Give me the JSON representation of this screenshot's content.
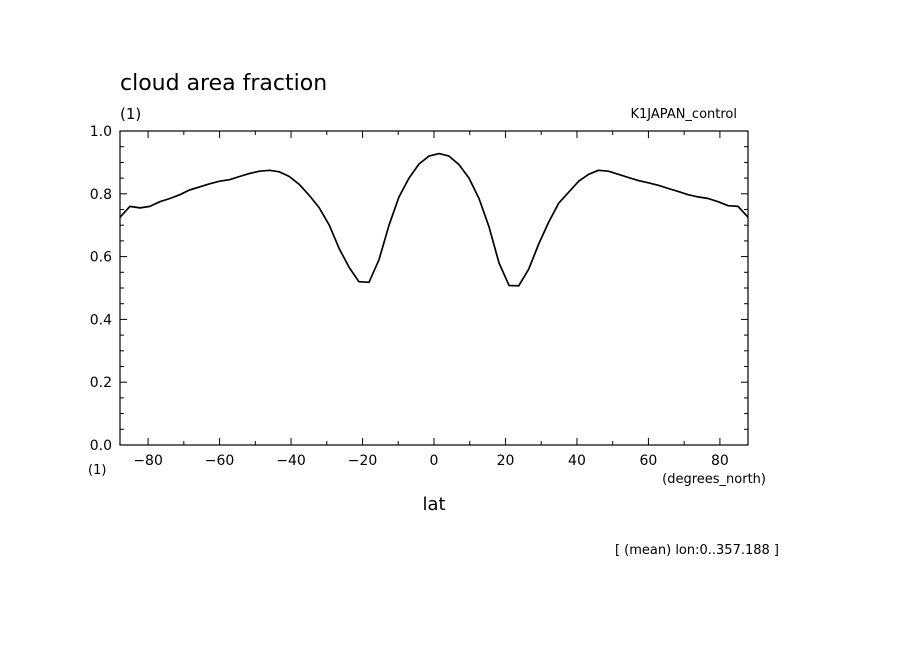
{
  "chart_data": {
    "type": "line",
    "title": "cloud area fraction",
    "y_units": "(1)",
    "x_units_left": "(1)",
    "x_units": "(degrees_north)",
    "xlabel": "lat",
    "dataset_label": "K1JAPAN_control",
    "footnote": "[ (mean) lon:0..357.188 ]",
    "xlim": [
      -87.86,
      87.86
    ],
    "ylim": [
      0.0,
      1.0
    ],
    "x_ticks": [
      -80,
      -60,
      -40,
      -20,
      0,
      20,
      40,
      60,
      80
    ],
    "x_tick_labels": [
      "−80",
      "−60",
      "−40",
      "−20",
      "0",
      "20",
      "40",
      "60",
      "80"
    ],
    "y_ticks": [
      0.0,
      0.2,
      0.4,
      0.6,
      0.8,
      1.0
    ],
    "y_tick_labels": [
      "0.0",
      "0.2",
      "0.4",
      "0.6",
      "0.8",
      "1.0"
    ],
    "grid": false,
    "series": [
      {
        "x": [
          -87.9,
          -85.1,
          -82.3,
          -79.5,
          -76.7,
          -73.9,
          -71.1,
          -68.4,
          -65.6,
          -62.8,
          -60.0,
          -57.2,
          -54.4,
          -51.6,
          -48.8,
          -46.0,
          -43.3,
          -40.5,
          -37.7,
          -34.9,
          -32.1,
          -29.3,
          -26.5,
          -23.7,
          -21.0,
          -18.2,
          -15.4,
          -12.6,
          -9.8,
          -7.0,
          -4.2,
          -1.4,
          1.4,
          4.2,
          7.0,
          9.8,
          12.6,
          15.4,
          18.2,
          21.0,
          23.7,
          26.5,
          29.3,
          32.1,
          34.9,
          37.7,
          40.5,
          43.3,
          46.0,
          48.8,
          51.6,
          54.4,
          57.2,
          60.0,
          62.8,
          65.6,
          68.4,
          71.1,
          73.9,
          76.7,
          79.5,
          82.3,
          85.1,
          87.9
        ],
        "y": [
          0.725,
          0.76,
          0.755,
          0.76,
          0.775,
          0.785,
          0.797,
          0.812,
          0.822,
          0.832,
          0.84,
          0.845,
          0.855,
          0.865,
          0.872,
          0.875,
          0.87,
          0.855,
          0.83,
          0.795,
          0.755,
          0.7,
          0.625,
          0.565,
          0.52,
          0.518,
          0.59,
          0.7,
          0.79,
          0.85,
          0.895,
          0.92,
          0.928,
          0.92,
          0.893,
          0.85,
          0.785,
          0.695,
          0.58,
          0.508,
          0.507,
          0.56,
          0.64,
          0.71,
          0.77,
          0.805,
          0.84,
          0.862,
          0.875,
          0.872,
          0.862,
          0.852,
          0.842,
          0.835,
          0.827,
          0.817,
          0.807,
          0.797,
          0.79,
          0.785,
          0.775,
          0.762,
          0.76,
          0.725
        ]
      }
    ]
  }
}
